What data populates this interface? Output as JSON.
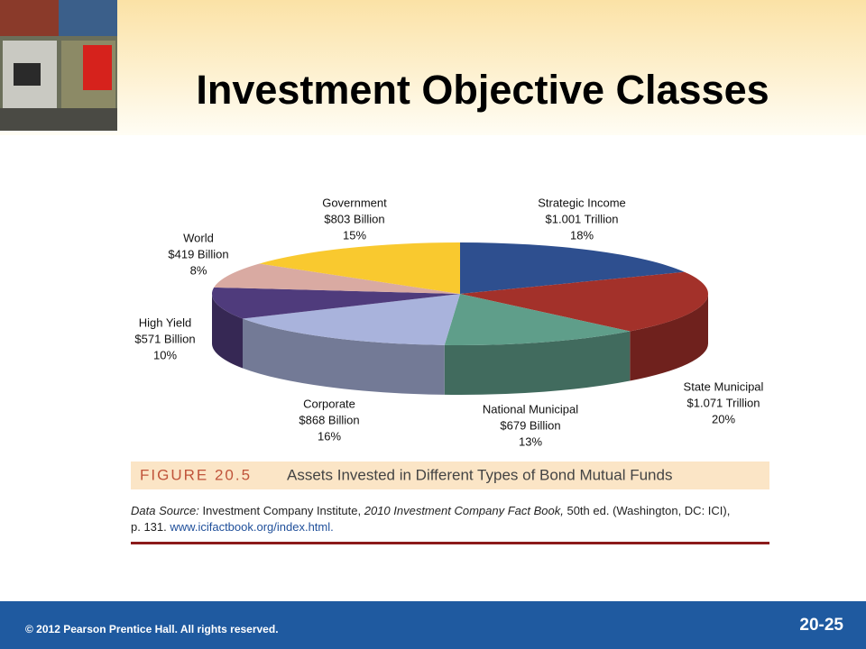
{
  "title": "Investment Objective Classes",
  "chart_data": {
    "type": "pie",
    "categories": [
      "Strategic Income",
      "State Municipal",
      "National Municipal",
      "Corporate",
      "High Yield",
      "World",
      "Government"
    ],
    "amounts": [
      "$1.001 Trillion",
      "$1.071 Trillion",
      "$679 Billion",
      "$868 Billion",
      "$571 Billion",
      "$419 Billion",
      "$803 Billion"
    ],
    "values": [
      18,
      20,
      13,
      16,
      10,
      8,
      15
    ],
    "value_labels": [
      "18%",
      "20%",
      "13%",
      "16%",
      "10%",
      "8%",
      "15%"
    ],
    "colors": [
      "#2e4f8f",
      "#a3312a",
      "#5f9e8a",
      "#a9b3dc",
      "#4f3b7c",
      "#d9aaa2",
      "#f9c92f"
    ]
  },
  "figure": {
    "number": "FIGURE 20.5",
    "caption": "Assets Invested in Different Types of Bond Mutual Funds"
  },
  "source": {
    "label": "Data Source:",
    "org": "Investment Company Institute,",
    "book": "2010 Investment Company Fact Book,",
    "rest": "50th ed. (Washington, DC: ICI),",
    "page": "p. 131.",
    "url": "www.icifactbook.org/index.html."
  },
  "footer": {
    "copyright": "© 2012 Pearson Prentice Hall. All rights reserved.",
    "slide": "20-25"
  }
}
